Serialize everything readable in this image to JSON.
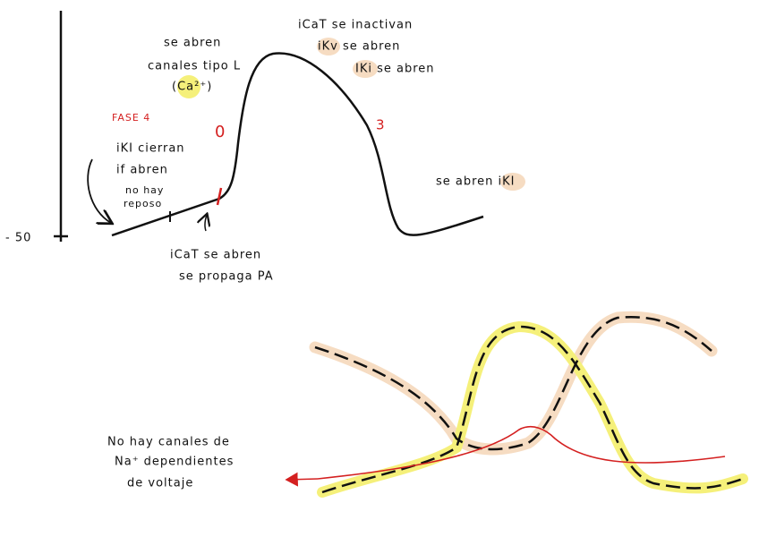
{
  "axis_label": "- 50",
  "phase_4": "FASE 4",
  "phase_0": "0",
  "phase_3": "3",
  "l_channels": [
    "se abren",
    "canales tipo L",
    "(Ca²⁺)"
  ],
  "icat_inactivate": [
    "iCaT  se inactivan",
    "iKv  se abren",
    "IKi  se abren"
  ],
  "iki_close": [
    "iKI cierran",
    "if  abren"
  ],
  "no_rest": [
    "no hay",
    "reposo"
  ],
  "icat_open": [
    "iCaT se abren",
    "se propaga PA"
  ],
  "iki_open": "se abren iKI",
  "no_na": [
    "No hay canales de",
    "Na⁺ dependientes",
    "de voltaje"
  ]
}
